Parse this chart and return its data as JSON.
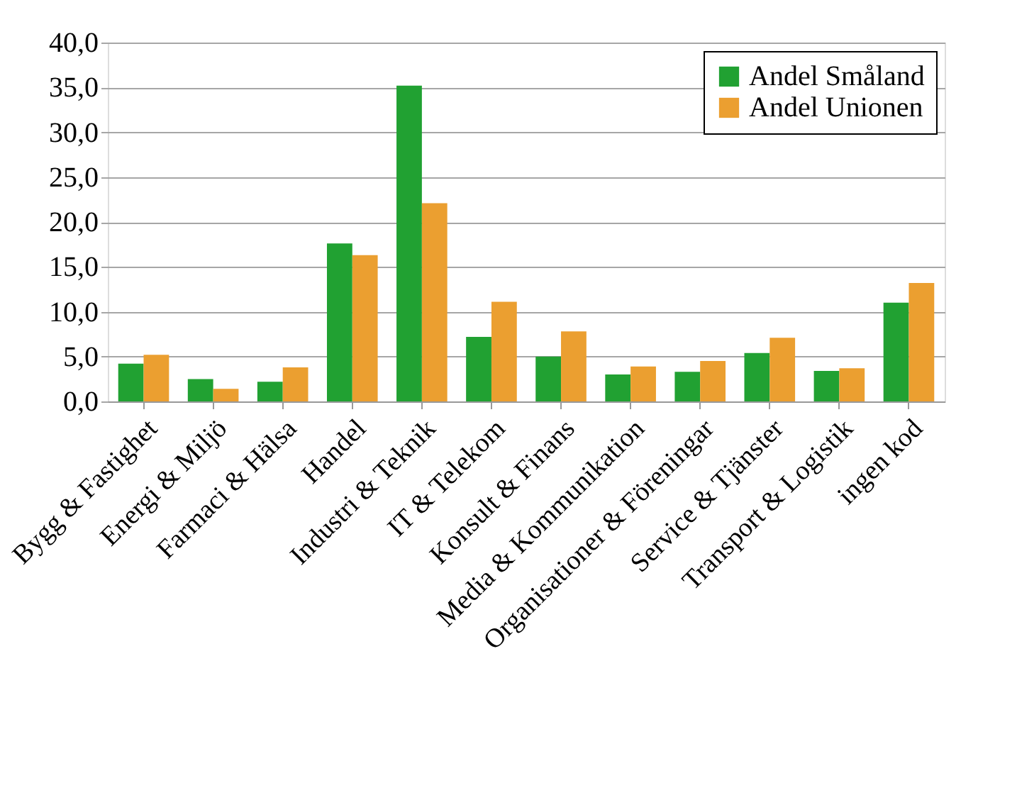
{
  "chart_data": {
    "type": "bar",
    "categories": [
      "Bygg & Fastighet",
      "Energi & Miljö",
      "Farmaci & Hälsa",
      "Handel",
      "Industri & Teknik",
      "IT & Telekom",
      "Konsult & Finans",
      "Media & Kommunikation",
      "Organisationer & Föreningar",
      "Service & Tjänster",
      "Transport & Logistik",
      "ingen kod"
    ],
    "series": [
      {
        "name": "Andel Småland",
        "color": "#21a132",
        "values": [
          4.2,
          2.5,
          2.2,
          17.6,
          35.2,
          7.2,
          5.0,
          3.0,
          3.3,
          5.4,
          3.4,
          11.0
        ]
      },
      {
        "name": "Andel Unionen",
        "color": "#eb9f30",
        "values": [
          5.2,
          1.4,
          3.8,
          16.3,
          22.1,
          11.1,
          7.8,
          3.9,
          4.5,
          7.1,
          3.7,
          13.2
        ]
      }
    ],
    "ylim": [
      0,
      40
    ],
    "yticks": [
      {
        "value": 0,
        "label": "0,0"
      },
      {
        "value": 5,
        "label": "5,0"
      },
      {
        "value": 10,
        "label": "10,0"
      },
      {
        "value": 15,
        "label": "15,0"
      },
      {
        "value": 20,
        "label": "20,0"
      },
      {
        "value": 25,
        "label": "25,0"
      },
      {
        "value": 30,
        "label": "30,0"
      },
      {
        "value": 35,
        "label": "35,0"
      },
      {
        "value": 40,
        "label": "40,0"
      }
    ],
    "grid": "y",
    "legend": "top right"
  }
}
